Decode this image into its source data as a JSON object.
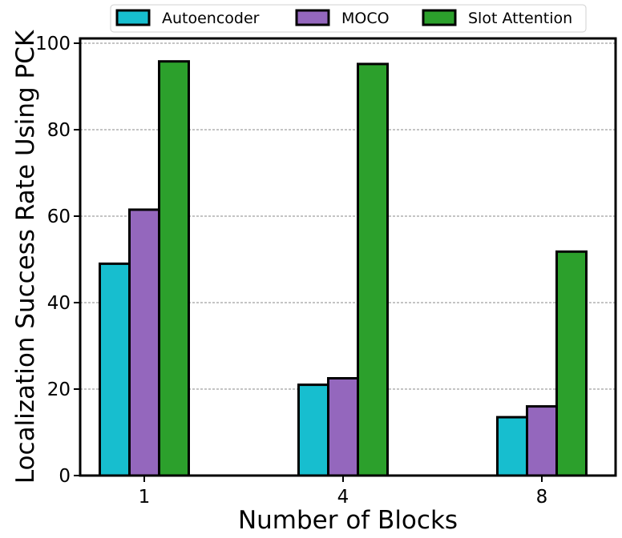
{
  "chart_data": {
    "type": "bar",
    "categories": [
      "1",
      "4",
      "8"
    ],
    "series": [
      {
        "name": "Autoencoder",
        "values": [
          49,
          21,
          13.5
        ],
        "color": "#17becf"
      },
      {
        "name": "MOCO",
        "values": [
          61.5,
          22.5,
          16
        ],
        "color": "#9467bd"
      },
      {
        "name": "Slot Attention",
        "values": [
          95.8,
          95.2,
          51.8
        ],
        "color": "#2ca02c"
      }
    ],
    "xlabel": "Number of Blocks",
    "ylabel": "Localization Success Rate Using PCK",
    "ylim": [
      0,
      100
    ],
    "yticks": [
      0,
      20,
      40,
      60,
      80,
      100
    ],
    "grid": true,
    "legend_position": "top-center"
  }
}
